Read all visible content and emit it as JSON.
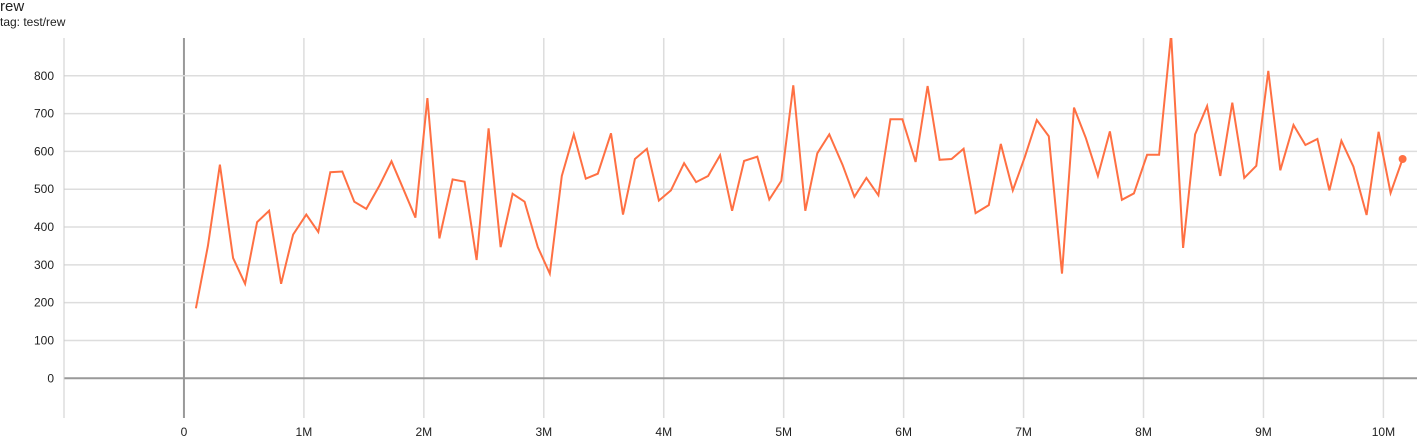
{
  "header": {
    "title": "rew",
    "tag": "tag: test/rew"
  },
  "chart_data": {
    "type": "line",
    "title": "rew",
    "subtitle": "tag: test/rew",
    "xlabel": "",
    "ylabel": "",
    "x_unit": "M",
    "xlim": [
      -1,
      10.28
    ],
    "ylim": [
      -105,
      900
    ],
    "x_ticks": [
      0,
      1,
      2,
      3,
      4,
      5,
      6,
      7,
      8,
      9,
      10
    ],
    "x_tick_labels": [
      "0",
      "1M",
      "2M",
      "3M",
      "4M",
      "5M",
      "6M",
      "7M",
      "8M",
      "9M",
      "10M"
    ],
    "y_ticks": [
      0,
      100,
      200,
      300,
      400,
      500,
      600,
      700,
      800
    ],
    "y_tick_labels": [
      "0",
      "100",
      "200",
      "300",
      "400",
      "500",
      "600",
      "700",
      "800"
    ],
    "grid": true,
    "color": "#ff7043",
    "series": [
      {
        "x": [
          0.1,
          0.2,
          0.3,
          0.41,
          0.51,
          0.61,
          0.71,
          0.81,
          0.91,
          1.02,
          1.12,
          1.22,
          1.32,
          1.42,
          1.52,
          1.63,
          1.73,
          1.83,
          1.93,
          2.03,
          2.13,
          2.24,
          2.34,
          2.44,
          2.54,
          2.64,
          2.74,
          2.84,
          2.95,
          3.05,
          3.15,
          3.25,
          3.35,
          3.45,
          3.56,
          3.66,
          3.76,
          3.86,
          3.96,
          4.06,
          4.17,
          4.27,
          4.37,
          4.47,
          4.57,
          4.67,
          4.78,
          4.88,
          4.98,
          5.08,
          5.18,
          5.28,
          5.38,
          5.49,
          5.59,
          5.69,
          5.79,
          5.89,
          5.99,
          6.1,
          6.2,
          6.3,
          6.4,
          6.5,
          6.6,
          6.71,
          6.81,
          6.91,
          7.01,
          7.11,
          7.21,
          7.32,
          7.42,
          7.52,
          7.62,
          7.72,
          7.82,
          7.92,
          8.03,
          8.13,
          8.23,
          8.33,
          8.43,
          8.53,
          8.64,
          8.74,
          8.84,
          8.94,
          9.04,
          9.14,
          9.25,
          9.35,
          9.45,
          9.55,
          9.65,
          9.75,
          9.86,
          9.96,
          10.06,
          10.16
        ],
        "y": [
          185,
          350,
          565,
          318,
          250,
          413,
          443,
          250,
          380,
          433,
          387,
          545,
          547,
          467,
          448,
          510,
          574,
          500,
          425,
          741,
          370,
          526,
          520,
          313,
          661,
          347,
          488,
          467,
          347,
          277,
          535,
          645,
          528,
          541,
          648,
          433,
          580,
          607,
          470,
          497,
          569,
          519,
          535,
          590,
          443,
          575,
          586,
          473,
          522,
          775,
          443,
          595,
          645,
          565,
          480,
          530,
          484,
          685,
          685,
          572,
          773,
          578,
          580,
          607,
          437,
          458,
          620,
          497,
          585,
          683,
          640,
          277,
          716,
          635,
          535,
          653,
          472,
          489,
          591,
          591,
          910,
          345,
          645,
          720,
          535,
          729,
          530,
          562,
          813,
          550,
          670,
          617,
          633,
          497,
          628,
          560,
          432,
          652,
          490,
          580
        ]
      }
    ]
  }
}
